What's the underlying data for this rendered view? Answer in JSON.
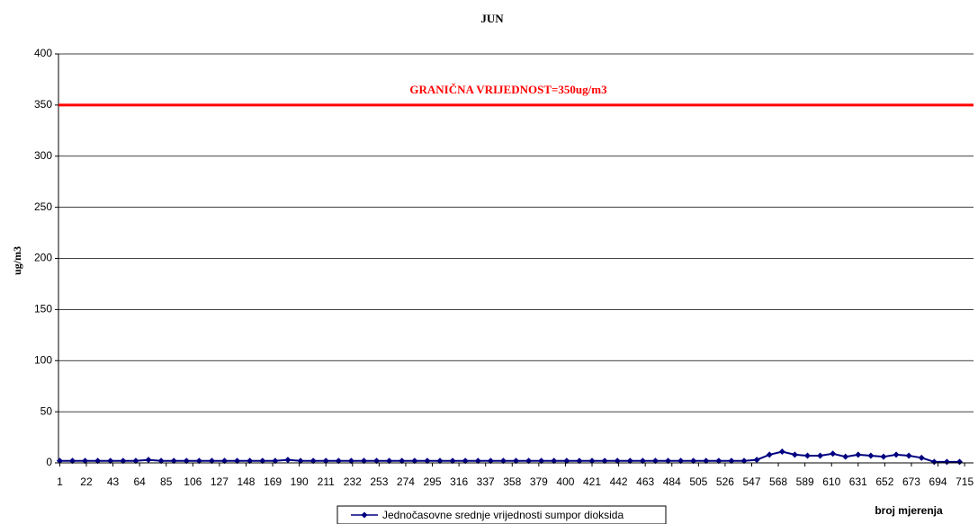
{
  "chart_data": {
    "type": "line",
    "title": "JUN",
    "y_label": "ug/m3",
    "x_label": "broj mjerenja",
    "xlim": [
      0,
      722
    ],
    "xticks": [
      1,
      22,
      43,
      64,
      85,
      106,
      127,
      148,
      169,
      190,
      211,
      232,
      253,
      274,
      295,
      316,
      337,
      358,
      379,
      400,
      421,
      442,
      463,
      484,
      505,
      526,
      547,
      568,
      589,
      610,
      631,
      652,
      673,
      694,
      715
    ],
    "ylim": [
      0,
      400
    ],
    "yticks": [
      0,
      50,
      100,
      150,
      200,
      250,
      300,
      350,
      400
    ],
    "grid": true,
    "threshold": {
      "value": 350,
      "label": "GRANIČNA VRIJEDNOST=350ug/m3",
      "color": "#ff0000"
    },
    "x": [
      1,
      11,
      21,
      31,
      41,
      51,
      61,
      71,
      81,
      91,
      101,
      111,
      121,
      131,
      141,
      151,
      161,
      171,
      181,
      191,
      201,
      211,
      221,
      231,
      241,
      251,
      261,
      271,
      281,
      291,
      301,
      311,
      321,
      331,
      341,
      351,
      361,
      371,
      381,
      391,
      401,
      411,
      421,
      431,
      441,
      451,
      461,
      471,
      481,
      491,
      501,
      511,
      521,
      531,
      541,
      551,
      561,
      571,
      581,
      591,
      601,
      611,
      621,
      631,
      641,
      651,
      661,
      671,
      681,
      691,
      701,
      711
    ],
    "series": [
      {
        "name": "Jednočasovne srednje vrijednosti sumpor dioksida",
        "color": "#000080",
        "values": [
          2,
          2,
          2,
          2,
          2,
          2,
          2,
          3,
          2,
          2,
          2,
          2,
          2,
          2,
          2,
          2,
          2,
          2,
          3,
          2,
          2,
          2,
          2,
          2,
          2,
          2,
          2,
          2,
          2,
          2,
          2,
          2,
          2,
          2,
          2,
          2,
          2,
          2,
          2,
          2,
          2,
          2,
          2,
          2,
          2,
          2,
          2,
          2,
          2,
          2,
          2,
          2,
          2,
          2,
          2,
          3,
          8,
          11,
          8,
          7,
          7,
          9,
          6,
          8,
          7,
          6,
          8,
          7,
          5,
          1,
          1,
          1
        ]
      }
    ]
  }
}
